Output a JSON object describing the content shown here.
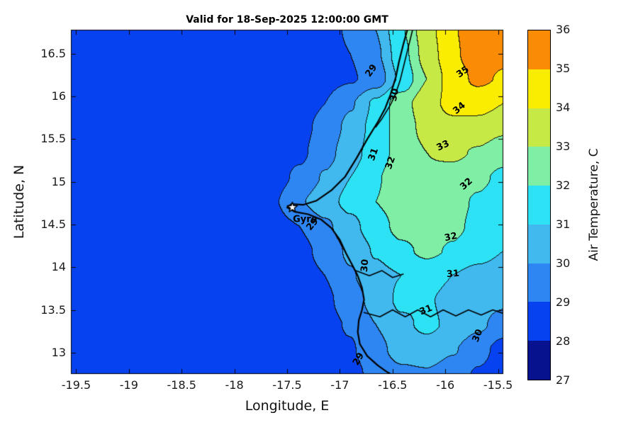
{
  "chart_data": {
    "type": "heatmap",
    "subtype": "filled-contour-map",
    "title": "Valid for 18-Sep-2025 12:00:00 GMT",
    "xlabel": "Longitude, E",
    "ylabel": "Latitude, N",
    "colorbar_label": "Air Temperature, C",
    "xlim": [
      -19.55,
      -15.45
    ],
    "ylim": [
      12.75,
      16.78
    ],
    "xticks": [
      -19.5,
      -19,
      -18.5,
      -18,
      -17.5,
      -17,
      -16.5,
      -16,
      -15.5
    ],
    "yticks": [
      13,
      13.5,
      14,
      14.5,
      15,
      15.5,
      16,
      16.5
    ],
    "levels": [
      27,
      28,
      29,
      30,
      31,
      32,
      33,
      34,
      35,
      36
    ],
    "colorbar_ticks": [
      27,
      28,
      29,
      30,
      31,
      32,
      33,
      34,
      35,
      36
    ],
    "band_colors": [
      "#06128e",
      "#0742f0",
      "#2e86f2",
      "#41b8ee",
      "#2ce2f4",
      "#7eefa4",
      "#c7e945",
      "#fbed02",
      "#fa8b05"
    ],
    "contour_line_color": "#0f0f0f",
    "coast_color": "#000000",
    "temperature_grid": {
      "lon_min": -19.55,
      "lon_max": -15.45,
      "lat_min": 12.75,
      "lat_max": 16.78,
      "values": [
        [
          28.4,
          28.4,
          28.4,
          28.4,
          28.4,
          28.4,
          28.4,
          28.4,
          28.4,
          28.4,
          28.5,
          28.7,
          29.3,
          29.8,
          29.9,
          29.5,
          28.9,
          28.4
        ],
        [
          28.4,
          28.4,
          28.4,
          28.4,
          28.4,
          28.4,
          28.4,
          28.4,
          28.4,
          28.4,
          28.6,
          28.9,
          29.7,
          30.4,
          30.6,
          30.1,
          29.4,
          28.6
        ],
        [
          28.4,
          28.4,
          28.4,
          28.4,
          28.4,
          28.4,
          28.4,
          28.4,
          28.4,
          28.5,
          28.7,
          29.1,
          30.0,
          30.8,
          31.2,
          30.8,
          30.2,
          29.6
        ],
        [
          28.4,
          28.4,
          28.4,
          28.4,
          28.4,
          28.4,
          28.4,
          28.4,
          28.4,
          28.5,
          28.8,
          29.5,
          30.4,
          31.2,
          31.1,
          30.7,
          30.4,
          30.2
        ],
        [
          28.4,
          28.4,
          28.4,
          28.4,
          28.4,
          28.4,
          28.4,
          28.4,
          28.5,
          28.6,
          29.0,
          29.9,
          30.7,
          31.0,
          31.4,
          31.0,
          30.7,
          30.5
        ],
        [
          28.4,
          28.4,
          28.4,
          28.4,
          28.4,
          28.4,
          28.4,
          28.4,
          28.5,
          28.7,
          29.3,
          30.2,
          31.1,
          31.8,
          32.2,
          31.9,
          31.4,
          31.0
        ],
        [
          28.4,
          28.4,
          28.4,
          28.4,
          28.4,
          28.4,
          28.4,
          28.5,
          28.6,
          29.0,
          29.8,
          30.7,
          31.6,
          32.3,
          32.5,
          32.2,
          31.8,
          31.3
        ],
        [
          28.4,
          28.4,
          28.4,
          28.4,
          28.4,
          28.4,
          28.4,
          28.5,
          28.9,
          29.9,
          30.6,
          31.3,
          32.0,
          32.5,
          32.6,
          32.3,
          31.9,
          31.5
        ],
        [
          28.4,
          28.4,
          28.4,
          28.4,
          28.4,
          28.4,
          28.4,
          28.4,
          28.6,
          29.2,
          30.1,
          31.0,
          31.9,
          32.6,
          32.9,
          32.6,
          32.2,
          31.8
        ],
        [
          28.4,
          28.4,
          28.4,
          28.4,
          28.4,
          28.4,
          28.4,
          28.4,
          28.5,
          28.8,
          29.6,
          30.6,
          31.5,
          32.4,
          33.0,
          33.2,
          32.9,
          32.4
        ],
        [
          28.4,
          28.4,
          28.4,
          28.4,
          28.4,
          28.4,
          28.4,
          28.4,
          28.5,
          28.7,
          29.3,
          30.3,
          31.4,
          32.5,
          33.3,
          33.7,
          33.6,
          33.2
        ],
        [
          28.4,
          28.4,
          28.4,
          28.4,
          28.4,
          28.4,
          28.4,
          28.4,
          28.4,
          28.6,
          29.0,
          29.9,
          31.2,
          32.6,
          33.6,
          34.3,
          34.4,
          34.0
        ],
        [
          28.4,
          28.4,
          28.4,
          28.4,
          28.4,
          28.4,
          28.4,
          28.4,
          28.4,
          28.5,
          28.7,
          28.9,
          29.4,
          31.2,
          33.0,
          34.5,
          35.2,
          34.9
        ],
        [
          28.4,
          28.4,
          28.4,
          28.4,
          28.4,
          28.4,
          28.4,
          28.4,
          28.4,
          28.5,
          28.7,
          29.0,
          29.8,
          31.6,
          33.4,
          34.8,
          35.6,
          35.2
        ],
        [
          28.4,
          28.4,
          28.4,
          28.4,
          28.4,
          28.4,
          28.4,
          28.4,
          28.4,
          28.5,
          28.7,
          29.1,
          30.0,
          31.9,
          33.6,
          34.9,
          35.6,
          35.3
        ]
      ]
    },
    "contour_labels": [
      {
        "text": "29",
        "lon": -16.7,
        "lat": 16.3,
        "rot": -55
      },
      {
        "text": "30",
        "lon": -16.48,
        "lat": 16.02,
        "rot": -78
      },
      {
        "text": "35",
        "lon": -15.83,
        "lat": 16.28,
        "rot": -35
      },
      {
        "text": "34",
        "lon": -15.87,
        "lat": 15.86,
        "rot": -40
      },
      {
        "text": "33",
        "lon": -16.02,
        "lat": 15.42,
        "rot": -25
      },
      {
        "text": "31",
        "lon": -16.68,
        "lat": 15.32,
        "rot": -70
      },
      {
        "text": "32",
        "lon": -16.52,
        "lat": 15.22,
        "rot": -70
      },
      {
        "text": "32",
        "lon": -15.8,
        "lat": 14.97,
        "rot": -42
      },
      {
        "text": "32",
        "lon": -15.95,
        "lat": 14.35,
        "rot": -12
      },
      {
        "text": "31",
        "lon": -15.93,
        "lat": 13.92,
        "rot": -5
      },
      {
        "text": "30",
        "lon": -16.76,
        "lat": 14.02,
        "rot": -85
      },
      {
        "text": "29",
        "lon": -17.26,
        "lat": 14.5,
        "rot": -50
      },
      {
        "text": "31",
        "lon": -16.18,
        "lat": 13.5,
        "rot": -22
      },
      {
        "text": "30",
        "lon": -15.69,
        "lat": 13.2,
        "rot": -68
      },
      {
        "text": "29",
        "lon": -16.82,
        "lat": 12.92,
        "rot": -60
      }
    ],
    "marker": {
      "label": "Gyre",
      "lon": -17.45,
      "lat": 14.7,
      "label_lon": -17.33,
      "label_lat": 14.56
    },
    "coastlines": [
      {
        "width": 2.2,
        "points": [
          [
            -16.36,
            16.78
          ],
          [
            -16.4,
            16.6
          ],
          [
            -16.44,
            16.4
          ],
          [
            -16.47,
            16.22
          ],
          [
            -16.52,
            16.02
          ],
          [
            -16.57,
            15.86
          ],
          [
            -16.64,
            15.7
          ],
          [
            -16.74,
            15.5
          ],
          [
            -16.84,
            15.28
          ],
          [
            -16.95,
            15.06
          ],
          [
            -17.08,
            14.9
          ],
          [
            -17.22,
            14.78
          ],
          [
            -17.35,
            14.73
          ],
          [
            -17.46,
            14.74
          ],
          [
            -17.5,
            14.7
          ],
          [
            -17.43,
            14.65
          ],
          [
            -17.3,
            14.62
          ],
          [
            -17.18,
            14.56
          ],
          [
            -17.08,
            14.46
          ],
          [
            -17.0,
            14.32
          ],
          [
            -16.94,
            14.16
          ],
          [
            -16.88,
            14.02
          ],
          [
            -16.83,
            13.9
          ],
          [
            -16.79,
            13.76
          ],
          [
            -16.77,
            13.62
          ],
          [
            -16.79,
            13.5
          ],
          [
            -16.82,
            13.38
          ],
          [
            -16.83,
            13.24
          ],
          [
            -16.81,
            13.1
          ],
          [
            -16.74,
            12.96
          ],
          [
            -16.64,
            12.85
          ],
          [
            -16.56,
            12.78
          ],
          [
            -16.52,
            12.75
          ]
        ]
      },
      {
        "width": 1.6,
        "points": [
          [
            -16.31,
            16.78
          ],
          [
            -16.35,
            16.58
          ],
          [
            -16.39,
            16.38
          ],
          [
            -16.43,
            16.18
          ],
          [
            -16.48,
            16.0
          ],
          [
            -16.53,
            15.88
          ],
          [
            -16.6,
            15.74
          ],
          [
            -16.66,
            15.64
          ]
        ]
      },
      {
        "width": 1.6,
        "points": [
          [
            -16.77,
            13.47
          ],
          [
            -16.62,
            13.42
          ],
          [
            -16.5,
            13.5
          ],
          [
            -16.38,
            13.42
          ],
          [
            -16.26,
            13.5
          ],
          [
            -16.14,
            13.42
          ],
          [
            -16.02,
            13.5
          ],
          [
            -15.9,
            13.43
          ],
          [
            -15.78,
            13.5
          ],
          [
            -15.66,
            13.44
          ],
          [
            -15.55,
            13.5
          ],
          [
            -15.45,
            13.46
          ]
        ]
      },
      {
        "width": 1.6,
        "points": [
          [
            -16.85,
            13.96
          ],
          [
            -16.72,
            13.9
          ],
          [
            -16.6,
            13.96
          ],
          [
            -16.5,
            13.88
          ],
          [
            -16.4,
            13.92
          ]
        ]
      }
    ]
  }
}
